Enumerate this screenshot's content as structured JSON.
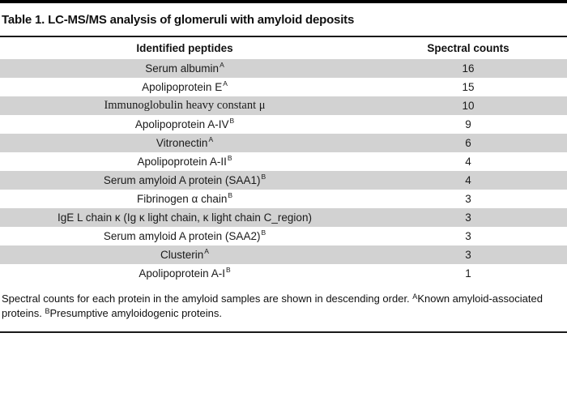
{
  "title": "Table 1. LC-MS/MS analysis of glomeruli with amyloid deposits",
  "table": {
    "columns": [
      "Identified peptides",
      "Spectral counts"
    ],
    "rows": [
      {
        "peptide": "Serum albumin",
        "sup": "A",
        "count": "16",
        "serif": false
      },
      {
        "peptide": "Apolipoprotein E",
        "sup": "A",
        "count": "15",
        "serif": false
      },
      {
        "peptide": "Immunoglobulin heavy constant μ",
        "sup": "",
        "count": "10",
        "serif": true
      },
      {
        "peptide": "Apolipoprotein A-IV",
        "sup": "B",
        "count": "9",
        "serif": false
      },
      {
        "peptide": "Vitronectin",
        "sup": "A",
        "count": "6",
        "serif": false
      },
      {
        "peptide": "Apolipoprotein A-II",
        "sup": "B",
        "count": "4",
        "serif": false
      },
      {
        "peptide": "Serum amyloid A protein (SAA1)",
        "sup": "B",
        "count": "4",
        "serif": false
      },
      {
        "peptide": "Fibrinogen α chain",
        "sup": "B",
        "count": "3",
        "serif": false
      },
      {
        "peptide": "IgE L chain κ (Ig κ light chain, κ light chain C_region)",
        "sup": "",
        "count": "3",
        "serif": false
      },
      {
        "peptide": "Serum amyloid A protein (SAA2)",
        "sup": "B",
        "count": "3",
        "serif": false
      },
      {
        "peptide": "Clusterin",
        "sup": "A",
        "count": "3",
        "serif": false
      },
      {
        "peptide": "Apolipoprotein A-I",
        "sup": "B",
        "count": "1",
        "serif": false
      }
    ]
  },
  "footnote": {
    "part1": "Spectral counts for each protein in the amyloid samples are shown in descending order. ",
    "sup_a": "A",
    "part2": "Known amyloid-associated proteins. ",
    "sup_b": "B",
    "part3": "Presumptive amyloidogenic proteins."
  },
  "colors": {
    "row_stripe": "#d2d2d2",
    "rule": "#000000",
    "text": "#1a1a1a"
  }
}
